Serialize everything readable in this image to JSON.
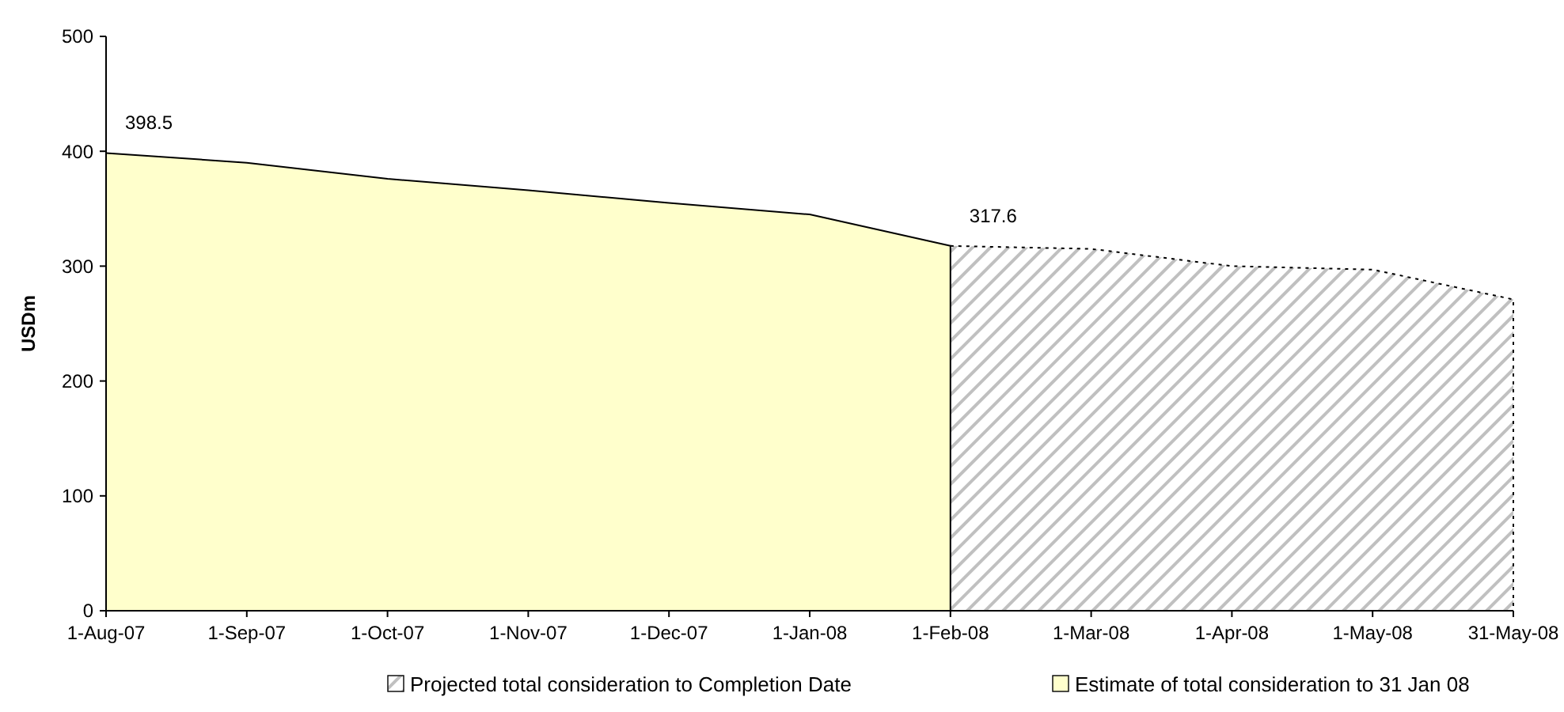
{
  "chart_data": {
    "type": "area",
    "ylabel": "USDm",
    "categories": [
      "1-Aug-07",
      "1-Sep-07",
      "1-Oct-07",
      "1-Nov-07",
      "1-Dec-07",
      "1-Jan-08",
      "1-Feb-08",
      "1-Mar-08",
      "1-Apr-08",
      "1-May-08",
      "31-May-08"
    ],
    "series": [
      {
        "name": "Projected total consideration to Completion Date",
        "color": "#c0c0c0",
        "line_style": "dotted",
        "values": [
          null,
          null,
          null,
          null,
          null,
          null,
          317.6,
          315,
          300,
          297,
          271
        ]
      },
      {
        "name": "Estimate of total consideration to 31 Jan 08",
        "color": "#ffffcc",
        "line_style": "solid",
        "values": [
          398.5,
          390,
          376,
          366,
          355,
          345,
          317.6,
          null,
          null,
          null,
          null
        ],
        "value_labels": [
          "398.5",
          null,
          null,
          null,
          null,
          null,
          "317.6",
          null,
          null,
          null,
          null
        ]
      }
    ],
    "ylim": [
      0,
      500
    ],
    "yticks": [
      0,
      100,
      200,
      300,
      400,
      500
    ],
    "legend": "bottom"
  }
}
